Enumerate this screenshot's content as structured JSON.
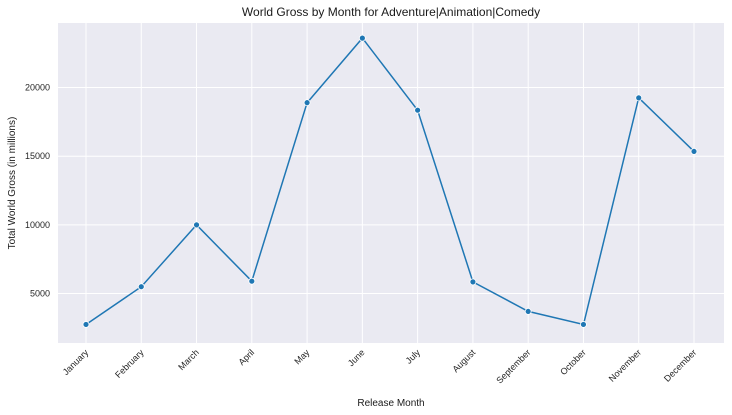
{
  "chart_data": {
    "type": "line",
    "title": "World Gross by Month for Adventure|Animation|Comedy",
    "xlabel": "Release Month",
    "ylabel": "Total World Gross (in millions)",
    "categories": [
      "January",
      "February",
      "March",
      "April",
      "May",
      "June",
      "July",
      "August",
      "September",
      "October",
      "November",
      "December"
    ],
    "series": [
      {
        "values": [
          2750,
          5500,
          10000,
          5900,
          18900,
          23600,
          18350,
          5850,
          3700,
          2750,
          19250,
          15350
        ]
      }
    ],
    "yticks": [
      5000,
      10000,
      15000,
      20000
    ],
    "ylim": [
      1400,
      24700
    ],
    "grid": true,
    "colors": {
      "line": "#1f77b4",
      "background": "#eaeaf2",
      "grid": "#ffffff"
    }
  }
}
